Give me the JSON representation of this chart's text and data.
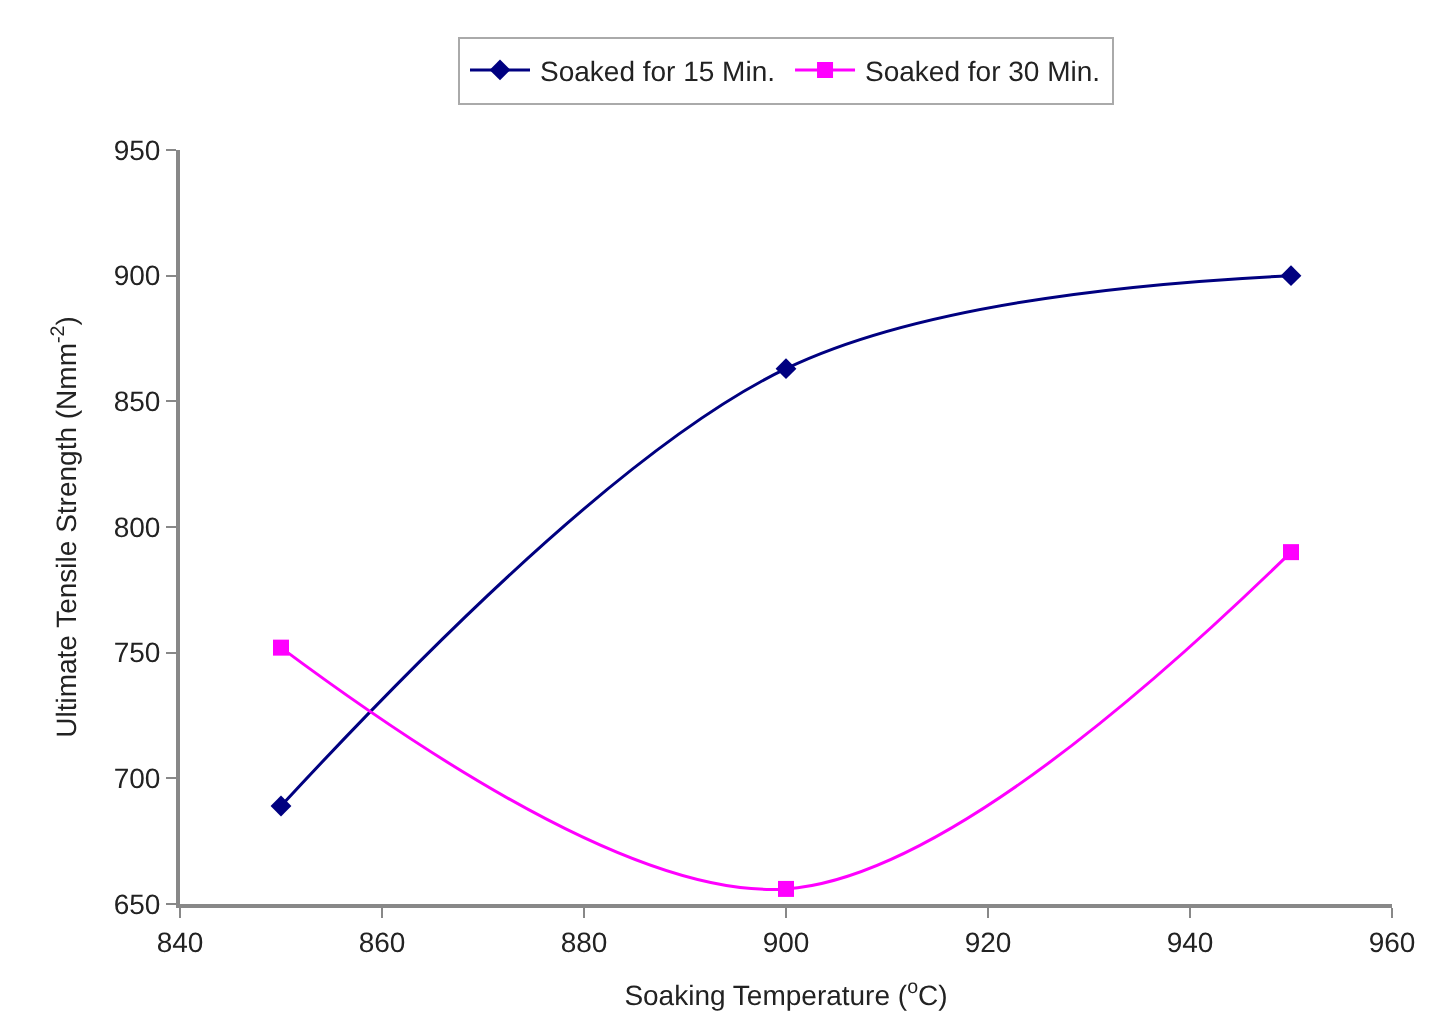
{
  "chart_data": {
    "type": "line",
    "xlabel": "Soaking Temperature ($^{o}$C)",
    "ylabel": "Ultimate Tensile Strength (Nmm$^{-2}$)",
    "x": [
      850,
      900,
      950
    ],
    "series": [
      {
        "name": "Soaked for 15 Min.",
        "color": "#000080",
        "values": [
          689,
          863,
          900
        ],
        "marker": "diamond"
      },
      {
        "name": "Soaked for 30 Min.",
        "color": "#ff00ff",
        "values": [
          752,
          656,
          790
        ],
        "marker": "square"
      }
    ],
    "xlim": [
      840,
      960
    ],
    "xticks": [
      840,
      860,
      880,
      900,
      920,
      940,
      960
    ],
    "ylim": [
      650,
      950
    ],
    "yticks": [
      650,
      700,
      750,
      800,
      850,
      900,
      950
    ],
    "legend": "top",
    "line_style": "solid"
  }
}
